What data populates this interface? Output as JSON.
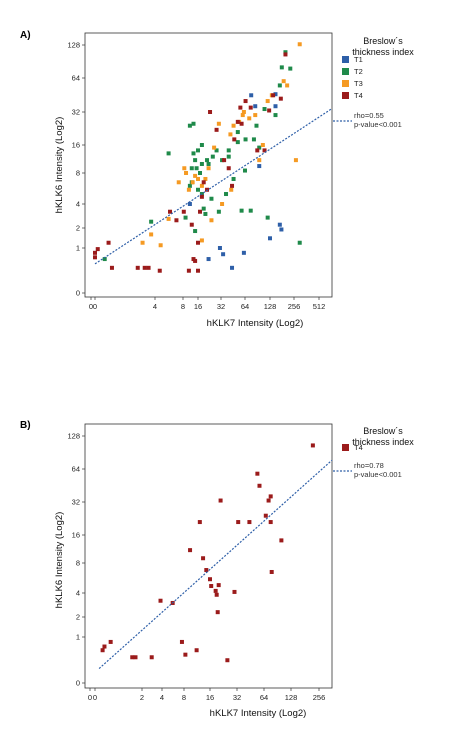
{
  "chart_data": [
    {
      "type": "scatter",
      "panel_label": "A)",
      "xlabel": "hKLK7 Intensity (Log2)",
      "ylabel": "hKLK6 Intensity (Log2)",
      "x_scale": "log2",
      "y_scale": "log2",
      "x_ticks": [
        "0",
        "0",
        "4",
        "8",
        "16",
        "32",
        "64",
        "128",
        "256",
        "512"
      ],
      "y_ticks": [
        "128",
        "64",
        "32",
        "16",
        "8",
        "4",
        "2",
        "1",
        "0"
      ],
      "legend_title_lines": [
        "Breslow´s",
        "thickness index"
      ],
      "grid": false,
      "colors": {
        "T1": "#2e5fa8",
        "T2": "#1f8a4a",
        "T3": "#f59a23",
        "T4": "#9b1b1b",
        "fit": "#2e5fa8"
      },
      "series": [
        {
          "name": "T1",
          "points": [
            [
              22,
              0.6
            ],
            [
              44,
              0.4
            ],
            [
              34,
              0.75
            ],
            [
              31,
              1.0
            ],
            [
              62,
              0.8
            ],
            [
              128,
              1.4
            ],
            [
              178,
              1.9
            ],
            [
              170,
              2.2
            ],
            [
              95,
              9.5
            ],
            [
              150,
              36
            ],
            [
              150,
              46
            ],
            [
              85,
              36
            ],
            [
              76,
              45
            ],
            [
              11,
              4
            ]
          ]
        },
        {
          "name": "T2",
          "points": [
            [
              0.7,
              0.6
            ],
            [
              3.5,
              2.4
            ],
            [
              5.6,
              13
            ],
            [
              9,
              2.7
            ],
            [
              11,
              24
            ],
            [
              13,
              25
            ],
            [
              14,
              11
            ],
            [
              12,
              9
            ],
            [
              16,
              5.5
            ],
            [
              18,
              10
            ],
            [
              22,
              10
            ],
            [
              21,
              11
            ],
            [
              25,
              12
            ],
            [
              28,
              14
            ],
            [
              33,
              11
            ],
            [
              40,
              14
            ],
            [
              37,
              5
            ],
            [
              46,
              7
            ],
            [
              52,
              21
            ],
            [
              58,
              3.3
            ],
            [
              64,
              8.5
            ],
            [
              75,
              3.3
            ],
            [
              82,
              18
            ],
            [
              95,
              15
            ],
            [
              120,
              2.7
            ],
            [
              150,
              30
            ],
            [
              180,
              80
            ],
            [
              200,
              110
            ],
            [
              170,
              55
            ],
            [
              230,
              78
            ],
            [
              300,
              1.2
            ],
            [
              18,
              5
            ],
            [
              24,
              4.5
            ],
            [
              14,
              1.8
            ],
            [
              11,
              6
            ],
            [
              18,
              16
            ],
            [
              20,
              3
            ],
            [
              16,
              14
            ],
            [
              17,
              8
            ],
            [
              19,
              3.5
            ],
            [
              65,
              18
            ],
            [
              52,
              17
            ],
            [
              15,
              9
            ],
            [
              30,
              3.2
            ],
            [
              40,
              12
            ],
            [
              88,
              24
            ],
            [
              110,
              34
            ],
            [
              13,
              13
            ],
            [
              12,
              6.5
            ]
          ]
        },
        {
          "name": "T3",
          "points": [
            [
              3.5,
              1.6
            ],
            [
              2.6,
              1.2
            ],
            [
              4.6,
              1.1
            ],
            [
              5.6,
              2.6
            ],
            [
              7.2,
              6.5
            ],
            [
              8.5,
              9
            ],
            [
              9.2,
              8
            ],
            [
              10.5,
              5.5
            ],
            [
              12.5,
              6.5
            ],
            [
              14,
              7.5
            ],
            [
              16,
              7
            ],
            [
              18,
              6
            ],
            [
              20,
              7
            ],
            [
              22,
              9
            ],
            [
              26,
              15
            ],
            [
              30,
              25
            ],
            [
              42,
              20
            ],
            [
              46,
              24
            ],
            [
              54,
              26
            ],
            [
              60,
              30
            ],
            [
              62,
              32
            ],
            [
              72,
              28
            ],
            [
              85,
              30
            ],
            [
              95,
              11
            ],
            [
              105,
              16
            ],
            [
              120,
              40
            ],
            [
              135,
              45
            ],
            [
              190,
              60
            ],
            [
              210,
              55
            ],
            [
              300,
              130
            ],
            [
              270,
              11
            ],
            [
              43,
              5.5
            ],
            [
              24,
              2.5
            ],
            [
              18,
              1.3
            ],
            [
              33,
              4
            ]
          ]
        },
        {
          "name": "T4",
          "points": [
            [
              0.3,
              0.65
            ],
            [
              0.4,
              0.8
            ],
            [
              0.55,
              0.95
            ],
            [
              0.9,
              0.4
            ],
            [
              0.8,
              1.2
            ],
            [
              2.2,
              0.4
            ],
            [
              2.8,
              0.4
            ],
            [
              3.2,
              0.4
            ],
            [
              4.5,
              0.35
            ],
            [
              5.8,
              3.2
            ],
            [
              6.8,
              2.5
            ],
            [
              8.3,
              3.2
            ],
            [
              10.5,
              0.35
            ],
            [
              13,
              0.6
            ],
            [
              14,
              0.55
            ],
            [
              16,
              1.2
            ],
            [
              17,
              3.2
            ],
            [
              18,
              4.7
            ],
            [
              19,
              6.5
            ],
            [
              21,
              5.5
            ],
            [
              23,
              32
            ],
            [
              28,
              22
            ],
            [
              35,
              11
            ],
            [
              40,
              9
            ],
            [
              44,
              6
            ],
            [
              47,
              18
            ],
            [
              52,
              26
            ],
            [
              56,
              35
            ],
            [
              58,
              25
            ],
            [
              65,
              40
            ],
            [
              75,
              35
            ],
            [
              90,
              14
            ],
            [
              110,
              14
            ],
            [
              125,
              33
            ],
            [
              140,
              45
            ],
            [
              175,
              42
            ],
            [
              200,
              105
            ],
            [
              16,
              0.35
            ],
            [
              12,
              2.2
            ]
          ]
        }
      ],
      "fit_line": {
        "x_range": [
          0,
          720
        ],
        "y_at_x_min": 0.48,
        "y_at_x_max": 34
      },
      "annotation": {
        "rho": "rho=0.55",
        "p": "p-value<0.001"
      }
    },
    {
      "type": "scatter",
      "panel_label": "B)",
      "xlabel": "hKLK7 Intensity (Log2)",
      "ylabel": "hKLK6 Intensity (Log2)",
      "x_scale": "log2",
      "y_scale": "log2",
      "x_ticks": [
        "0",
        "0",
        "2",
        "4",
        "8",
        "16",
        "32",
        "64",
        "128",
        "256"
      ],
      "y_ticks": [
        "128",
        "64",
        "32",
        "16",
        "8",
        "4",
        "2",
        "1",
        "0"
      ],
      "legend_title_lines": [
        "Breslow´s",
        "thickness index"
      ],
      "grid": false,
      "colors": {
        "T4": "#9b1b1b",
        "fit": "#2e5fa8"
      },
      "series": [
        {
          "name": "T4",
          "points": [
            [
              0.35,
              0.55
            ],
            [
              0.38,
              0.65
            ],
            [
              0.5,
              0.8
            ],
            [
              1.3,
              0.4
            ],
            [
              1.5,
              0.4
            ],
            [
              2.8,
              0.4
            ],
            [
              3.8,
              3.2
            ],
            [
              5.6,
              3.0
            ],
            [
              7.5,
              0.8
            ],
            [
              8.3,
              0.45
            ],
            [
              9.4,
              11
            ],
            [
              11.2,
              0.55
            ],
            [
              12.2,
              21
            ],
            [
              13.3,
              9
            ],
            [
              14.5,
              6.8
            ],
            [
              16,
              5.5
            ],
            [
              16.5,
              4.7
            ],
            [
              18.5,
              4.2
            ],
            [
              19,
              3.8
            ],
            [
              19.5,
              2.3
            ],
            [
              20,
              4.8
            ],
            [
              21,
              33
            ],
            [
              25,
              0.35
            ],
            [
              30,
              4.1
            ],
            [
              33,
              21
            ],
            [
              44,
              21
            ],
            [
              54,
              58
            ],
            [
              57,
              45
            ],
            [
              67,
              24
            ],
            [
              72,
              33
            ],
            [
              76,
              36
            ],
            [
              76,
              21
            ],
            [
              78,
              6.5
            ],
            [
              100,
              14
            ],
            [
              220,
              105
            ]
          ]
        }
      ],
      "fit_line": {
        "x_range": [
          0.3,
          520
        ],
        "y_at_x_min": 0.24,
        "y_at_x_max": 77
      },
      "annotation": {
        "rho": "rho=0.78",
        "p": "p-value<0.001"
      }
    }
  ]
}
